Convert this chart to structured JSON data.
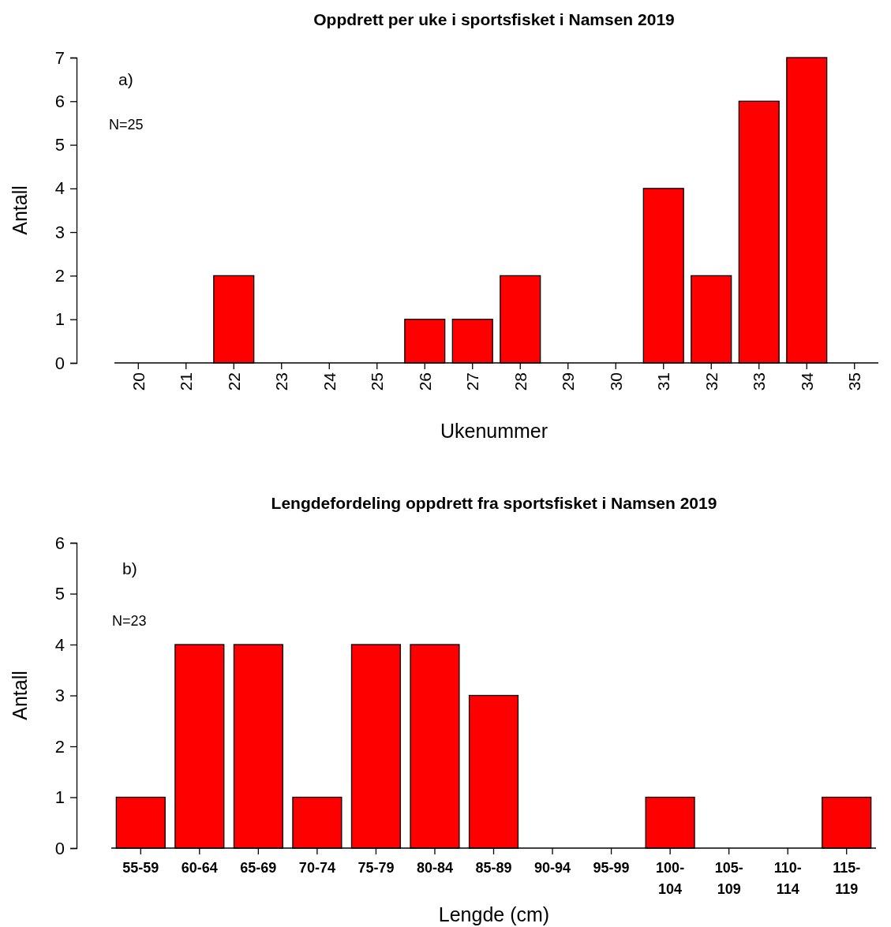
{
  "chart_data": [
    {
      "type": "bar",
      "title": "Oppdrett per uke i sportsfisket i Namsen 2019",
      "xlabel": "Ukenummer",
      "ylabel": "Antall",
      "annotations": [
        "a)",
        "N=25"
      ],
      "categories": [
        "20",
        "21",
        "22",
        "23",
        "24",
        "25",
        "26",
        "27",
        "28",
        "29",
        "30",
        "31",
        "32",
        "33",
        "34",
        "35"
      ],
      "values": [
        0,
        0,
        2,
        0,
        0,
        0,
        1,
        1,
        2,
        0,
        0,
        4,
        2,
        6,
        7,
        0
      ],
      "color": "#ff0000",
      "ylim": [
        0,
        7
      ],
      "yticks": [
        0,
        1,
        2,
        3,
        4,
        5,
        6,
        7
      ],
      "grid": false
    },
    {
      "type": "bar",
      "title": "Lengdefordeling oppdrett fra sportsfisket i Namsen 2019",
      "xlabel": "Lengde (cm)",
      "ylabel": "Antall",
      "annotations": [
        "b)",
        "N=23"
      ],
      "categories": [
        "55-59",
        "60-64",
        "65-69",
        "70-74",
        "75-79",
        "80-84",
        "85-89",
        "90-94",
        "95-99",
        "100-104",
        "105-109",
        "110-114",
        "115-119"
      ],
      "values": [
        1,
        4,
        4,
        1,
        4,
        4,
        3,
        0,
        0,
        1,
        0,
        0,
        1
      ],
      "color": "#ff0000",
      "ylim": [
        0,
        6
      ],
      "yticks": [
        0,
        1,
        2,
        3,
        4,
        5,
        6
      ],
      "grid": false
    }
  ]
}
